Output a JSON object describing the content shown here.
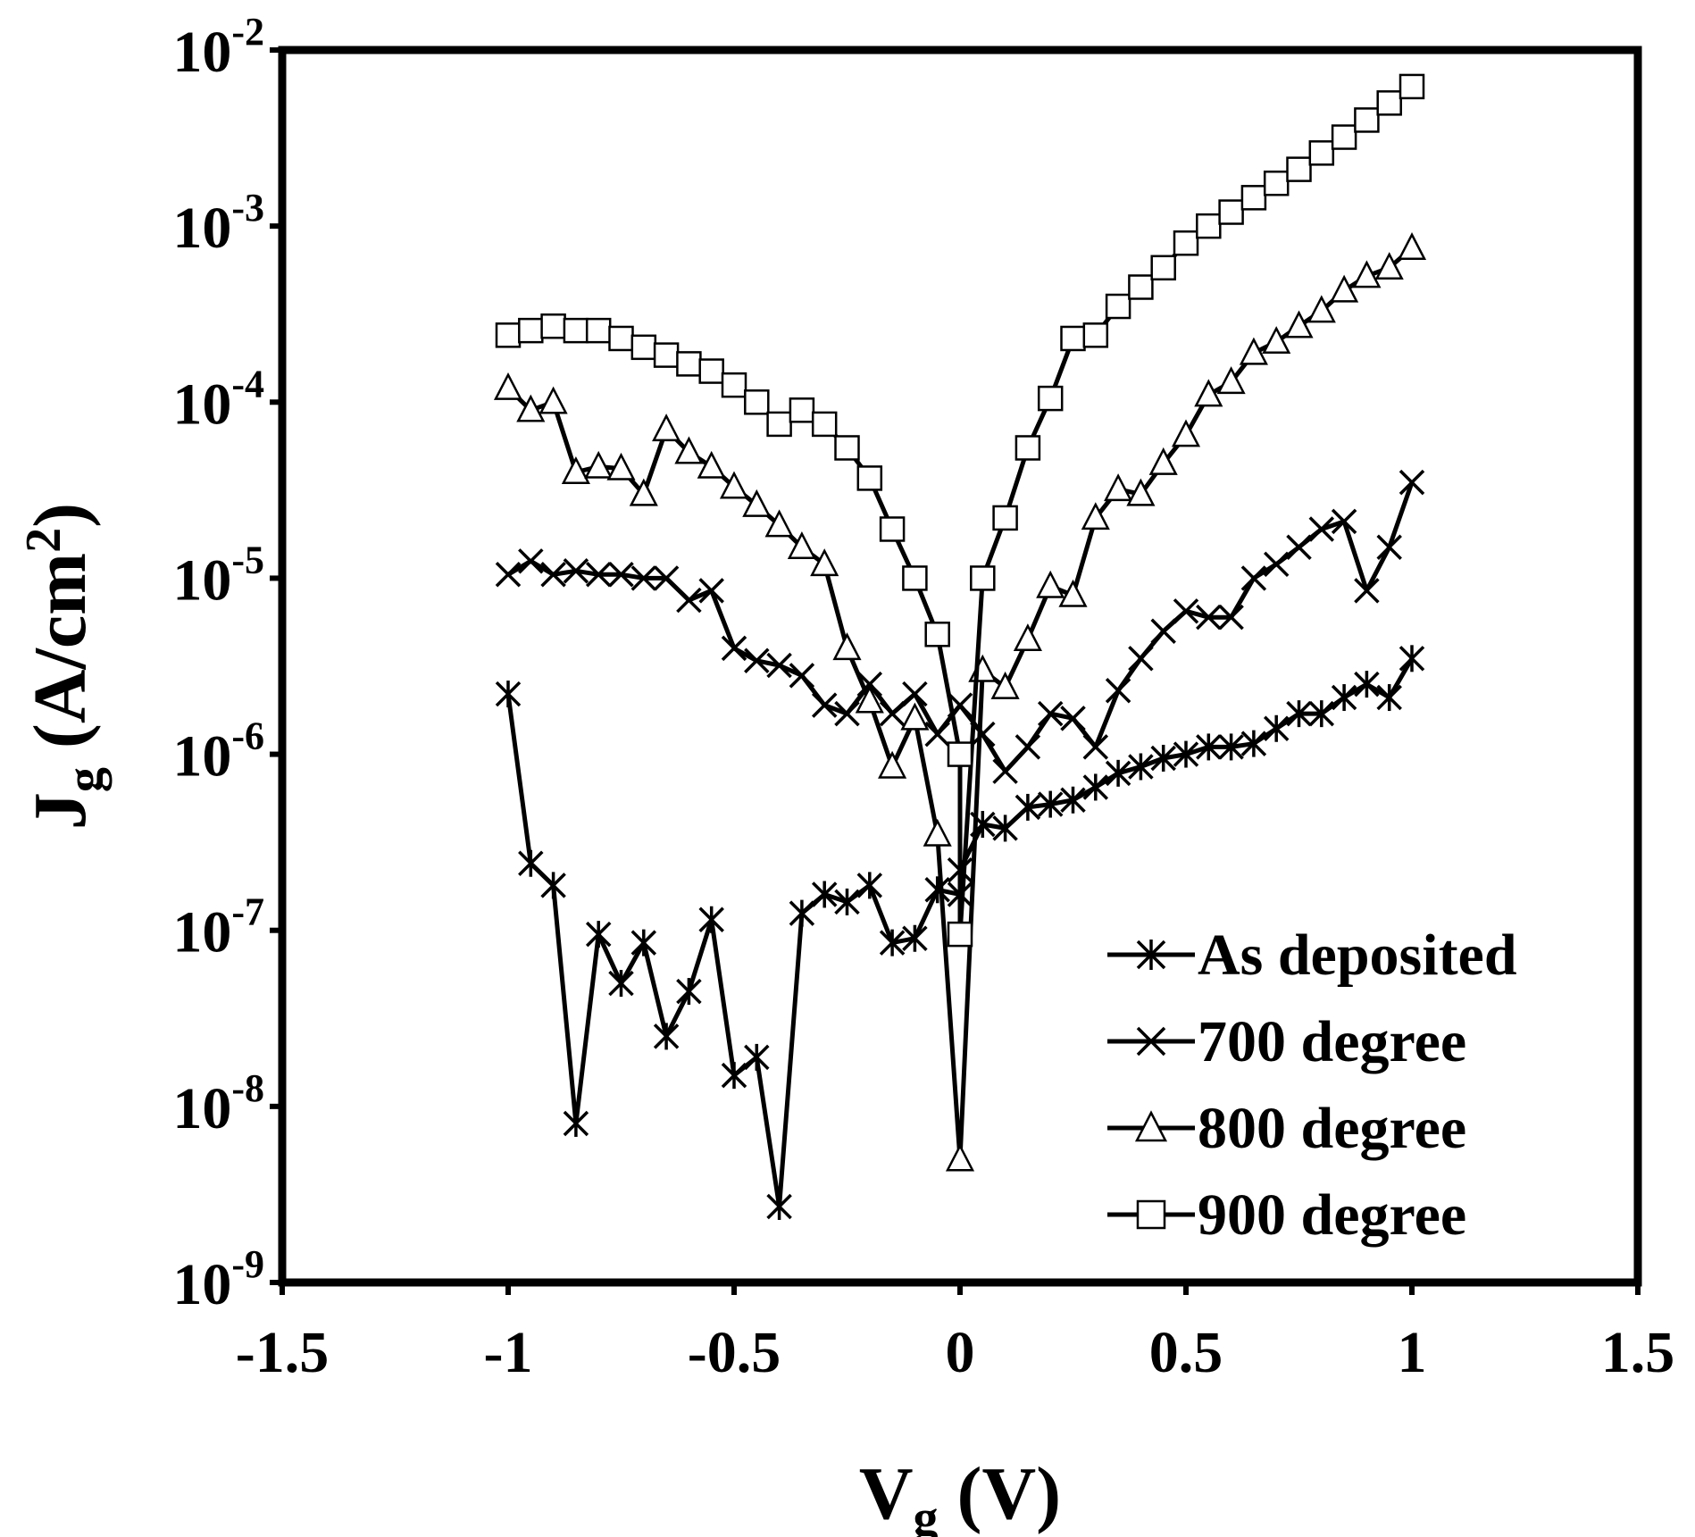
{
  "chart_data": {
    "type": "line",
    "xlabel": {
      "main": "V",
      "sub": "g",
      "rest": " (V)"
    },
    "ylabel": {
      "main": "J",
      "sub": "g",
      "rest": " (A/cm",
      "sup": "2",
      "close": ")"
    },
    "xlim": [
      -1.5,
      1.5
    ],
    "ylim": [
      1e-09,
      0.01
    ],
    "yscale": "log",
    "x_ticks": [
      "-1.5",
      "-1",
      "-0.5",
      "0",
      "0.5",
      "1",
      "1.5"
    ],
    "y_ticks": [
      {
        "base": "10",
        "exp": "-9"
      },
      {
        "base": "10",
        "exp": "-8"
      },
      {
        "base": "10",
        "exp": "-7"
      },
      {
        "base": "10",
        "exp": "-6"
      },
      {
        "base": "10",
        "exp": "-5"
      },
      {
        "base": "10",
        "exp": "-4"
      },
      {
        "base": "10",
        "exp": "-3"
      },
      {
        "base": "10",
        "exp": "-2"
      }
    ],
    "grid": false,
    "legend_position": "bottom-right",
    "series": [
      {
        "name": "As deposited",
        "marker": "asterisk",
        "x": [
          -1.0,
          -0.95,
          -0.9,
          -0.85,
          -0.8,
          -0.75,
          -0.7,
          -0.65,
          -0.6,
          -0.55,
          -0.5,
          -0.45,
          -0.4,
          -0.35,
          -0.3,
          -0.25,
          -0.2,
          -0.15,
          -0.1,
          -0.05,
          0.0,
          0.0,
          0.05,
          0.1,
          0.15,
          0.2,
          0.25,
          0.3,
          0.35,
          0.4,
          0.45,
          0.5,
          0.55,
          0.6,
          0.65,
          0.7,
          0.75,
          0.8,
          0.85,
          0.9,
          0.95,
          1.0
        ],
        "y": [
          2.2e-06,
          2.4e-07,
          1.8e-07,
          8e-09,
          9.5e-08,
          5e-08,
          8.5e-08,
          2.5e-08,
          4.5e-08,
          1.15e-07,
          1.5e-08,
          1.9e-08,
          2.7e-09,
          1.25e-07,
          1.6e-07,
          1.45e-07,
          1.8e-07,
          8.5e-08,
          9e-08,
          1.7e-07,
          1.6e-07,
          2.2e-07,
          4e-07,
          3.8e-07,
          5e-07,
          5.2e-07,
          5.5e-07,
          6.5e-07,
          7.8e-07,
          8.5e-07,
          9.5e-07,
          1e-06,
          1.1e-06,
          1.1e-06,
          1.15e-06,
          1.4e-06,
          1.7e-06,
          1.7e-06,
          2.1e-06,
          2.5e-06,
          2.1e-06,
          3.5e-06
        ]
      },
      {
        "name": "700 degree",
        "marker": "x",
        "x": [
          -1.0,
          -0.95,
          -0.9,
          -0.85,
          -0.8,
          -0.75,
          -0.7,
          -0.65,
          -0.6,
          -0.55,
          -0.5,
          -0.45,
          -0.4,
          -0.35,
          -0.3,
          -0.25,
          -0.2,
          -0.15,
          -0.1,
          -0.05,
          0.0,
          0.05,
          0.1,
          0.15,
          0.2,
          0.25,
          0.3,
          0.35,
          0.4,
          0.45,
          0.5,
          0.55,
          0.6,
          0.65,
          0.7,
          0.75,
          0.8,
          0.85,
          0.9,
          0.95,
          1.0
        ],
        "y": [
          1.05e-05,
          1.25e-05,
          1.05e-05,
          1.1e-05,
          1.05e-05,
          1.05e-05,
          1e-05,
          1e-05,
          7.5e-06,
          8.5e-06,
          4e-06,
          3.4e-06,
          3.2e-06,
          2.8e-06,
          1.9e-06,
          1.7e-06,
          2.5e-06,
          1.7e-06,
          2.2e-06,
          1.3e-06,
          1.9e-06,
          1.3e-06,
          8e-07,
          1.1e-06,
          1.7e-06,
          1.6e-06,
          1.1e-06,
          2.3e-06,
          3.5e-06,
          5e-06,
          6.5e-06,
          6e-06,
          6e-06,
          1e-05,
          1.2e-05,
          1.5e-05,
          1.9e-05,
          2.1e-05,
          8.5e-06,
          1.5e-05,
          3.5e-05
        ]
      },
      {
        "name": "800 degree",
        "marker": "triangle",
        "x": [
          -1.0,
          -0.95,
          -0.9,
          -0.85,
          -0.8,
          -0.75,
          -0.7,
          -0.65,
          -0.6,
          -0.55,
          -0.5,
          -0.45,
          -0.4,
          -0.35,
          -0.3,
          -0.25,
          -0.2,
          -0.15,
          -0.1,
          -0.05,
          0.0,
          0.05,
          0.1,
          0.15,
          0.2,
          0.25,
          0.3,
          0.35,
          0.4,
          0.45,
          0.5,
          0.55,
          0.6,
          0.65,
          0.7,
          0.75,
          0.8,
          0.85,
          0.9,
          0.95,
          1.0
        ],
        "y": [
          0.00012,
          9e-05,
          0.0001,
          4e-05,
          4.3e-05,
          4.2e-05,
          3e-05,
          7e-05,
          5.2e-05,
          4.3e-05,
          3.3e-05,
          2.6e-05,
          2e-05,
          1.5e-05,
          1.2e-05,
          4e-06,
          2e-06,
          8.5e-07,
          1.6e-06,
          3.5e-07,
          5e-09,
          3e-06,
          2.4e-06,
          4.5e-06,
          9e-06,
          8e-06,
          2.2e-05,
          3.2e-05,
          3e-05,
          4.5e-05,
          6.5e-05,
          0.00011,
          0.00013,
          0.00019,
          0.00022,
          0.00027,
          0.00033,
          0.00043,
          0.00052,
          0.00058,
          0.00075
        ]
      },
      {
        "name": "900 degree",
        "marker": "square",
        "x": [
          -1.0,
          -0.95,
          -0.9,
          -0.85,
          -0.8,
          -0.75,
          -0.7,
          -0.65,
          -0.6,
          -0.55,
          -0.5,
          -0.45,
          -0.4,
          -0.35,
          -0.3,
          -0.25,
          -0.2,
          -0.15,
          -0.1,
          -0.05,
          0.0,
          0.0,
          0.05,
          0.1,
          0.15,
          0.2,
          0.25,
          0.3,
          0.35,
          0.4,
          0.45,
          0.5,
          0.55,
          0.6,
          0.65,
          0.7,
          0.75,
          0.8,
          0.85,
          0.9,
          0.95,
          1.0
        ],
        "y": [
          0.00024,
          0.000255,
          0.00027,
          0.000255,
          0.000255,
          0.00023,
          0.000205,
          0.000185,
          0.000165,
          0.00015,
          0.000125,
          0.0001,
          7.5e-05,
          9e-05,
          7.5e-05,
          5.5e-05,
          3.7e-05,
          1.9e-05,
          1e-05,
          4.8e-06,
          1e-06,
          9.5e-08,
          1e-05,
          2.2e-05,
          5.5e-05,
          0.000105,
          0.00023,
          0.00024,
          0.00035,
          0.00045,
          0.00058,
          0.0008,
          0.001,
          0.0012,
          0.00145,
          0.00175,
          0.0021,
          0.0026,
          0.0032,
          0.004,
          0.005,
          0.0062
        ]
      }
    ]
  }
}
